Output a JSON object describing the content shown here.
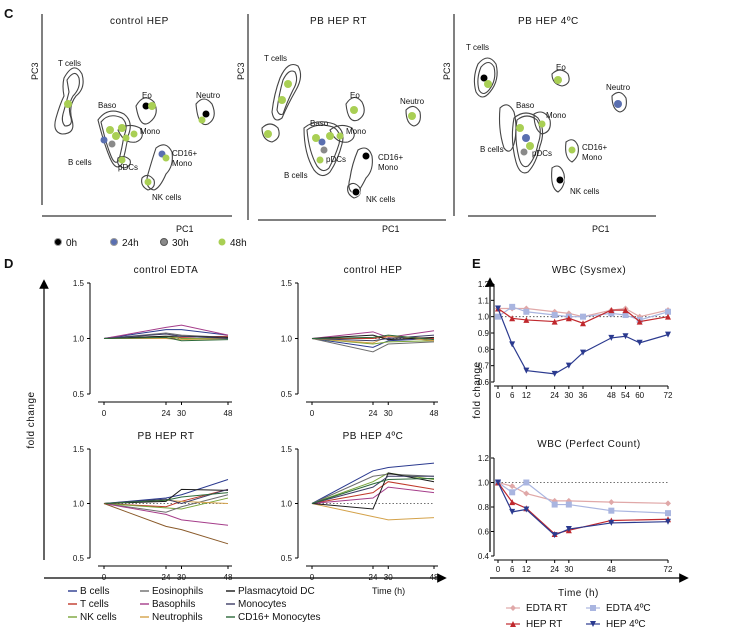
{
  "panels": {
    "c": "C",
    "d": "D",
    "e": "E"
  },
  "pca": {
    "titles": [
      "control  HEP",
      "PB  HEP  RT",
      "PB  HEP  4ºC"
    ],
    "xlabel": "PC1",
    "ylabel": "PC3",
    "clusters": [
      "T cells",
      "Baso",
      "B cells",
      "pDCs",
      "Eo",
      "Mono",
      "Neutro",
      "CD16+",
      "Mono",
      "NK cells"
    ],
    "time_legend": [
      "0h",
      "24h",
      "30h",
      "48h"
    ],
    "colors": {
      "h0": "#000000",
      "h24": "#5a6fb0",
      "h30": "#8a8a8a",
      "h48": "#a9cf54",
      "cluster": "#555555"
    }
  },
  "chart_data": [
    {
      "type": "line",
      "title": "control EDTA",
      "x": [
        0,
        24,
        30,
        48
      ],
      "ylim": [
        0.5,
        1.5
      ],
      "yticks": [
        0.5,
        1.0,
        1.5
      ],
      "series": [
        {
          "name": "B cells",
          "color": "#2b3a8f",
          "values": [
            1.0,
            1.08,
            1.08,
            1.03
          ]
        },
        {
          "name": "T cells",
          "color": "#c0392b",
          "values": [
            1.0,
            1.0,
            1.01,
            1.02
          ]
        },
        {
          "name": "NK cells",
          "color": "#7aa63a",
          "values": [
            1.0,
            1.02,
            1.0,
            1.0
          ]
        },
        {
          "name": "Eosinophils",
          "color": "#6d6d6d",
          "values": [
            1.0,
            1.05,
            1.03,
            1.01
          ]
        },
        {
          "name": "Basophils",
          "color": "#a53d8a",
          "values": [
            1.0,
            1.1,
            1.12,
            1.03
          ]
        },
        {
          "name": "Neutrophils",
          "color": "#d4a24a",
          "values": [
            1.0,
            1.0,
            0.99,
            1.0
          ]
        },
        {
          "name": "Plasmacytoid DC",
          "color": "#1a1a1a",
          "values": [
            1.0,
            1.02,
            1.02,
            1.01
          ]
        },
        {
          "name": "Monocytes",
          "color": "#3d3d66",
          "values": [
            1.0,
            1.04,
            1.02,
            1.0
          ]
        },
        {
          "name": "CD16+ Monocytes",
          "color": "#2e6a3a",
          "values": [
            1.0,
            1.01,
            0.98,
            0.99
          ]
        }
      ]
    },
    {
      "type": "line",
      "title": "control  HEP",
      "x": [
        0,
        24,
        30,
        48
      ],
      "ylim": [
        0.5,
        1.5
      ],
      "yticks": [
        0.5,
        1.0,
        1.5
      ],
      "series": [
        {
          "name": "B cells",
          "color": "#2b3a8f",
          "values": [
            1.0,
            0.92,
            0.98,
            1.0
          ]
        },
        {
          "name": "T cells",
          "color": "#c0392b",
          "values": [
            1.0,
            1.0,
            1.02,
            1.0
          ]
        },
        {
          "name": "NK cells",
          "color": "#7aa63a",
          "values": [
            1.0,
            0.95,
            0.97,
            0.98
          ]
        },
        {
          "name": "Eosinophils",
          "color": "#6d6d6d",
          "values": [
            1.0,
            0.88,
            0.95,
            0.97
          ]
        },
        {
          "name": "Basophils",
          "color": "#a53d8a",
          "values": [
            1.0,
            1.06,
            1.01,
            1.07
          ]
        },
        {
          "name": "Neutrophils",
          "color": "#d4a24a",
          "values": [
            1.0,
            0.96,
            1.02,
            0.98
          ]
        },
        {
          "name": "Plasmacytoid DC",
          "color": "#1a1a1a",
          "values": [
            1.0,
            1.03,
            0.99,
            1.01
          ]
        },
        {
          "name": "Monocytes",
          "color": "#3d3d66",
          "values": [
            1.0,
            0.98,
            1.0,
            1.03
          ]
        },
        {
          "name": "CD16+ Monocytes",
          "color": "#2e6a3a",
          "values": [
            1.0,
            1.01,
            1.03,
            0.99
          ]
        }
      ]
    },
    {
      "type": "line",
      "title": "PB  HEP  RT",
      "x": [
        0,
        24,
        30,
        48
      ],
      "ylim": [
        0.5,
        1.5
      ],
      "yticks": [
        0.5,
        1.0,
        1.5
      ],
      "series": [
        {
          "name": "B cells",
          "color": "#2b3a8f",
          "values": [
            1.0,
            1.05,
            1.08,
            1.22
          ]
        },
        {
          "name": "T cells",
          "color": "#c0392b",
          "values": [
            1.0,
            0.97,
            1.02,
            1.13
          ]
        },
        {
          "name": "NK cells",
          "color": "#7aa63a",
          "values": [
            1.0,
            0.96,
            0.95,
            1.05
          ]
        },
        {
          "name": "Eosinophils",
          "color": "#6d6d6d",
          "values": [
            1.0,
            0.92,
            0.97,
            1.08
          ]
        },
        {
          "name": "Basophils",
          "color": "#a53d8a",
          "values": [
            1.0,
            0.9,
            0.85,
            0.8
          ]
        },
        {
          "name": "Neutrophils",
          "color": "#d4a24a",
          "values": [
            1.0,
            1.03,
            1.02,
            1.0
          ]
        },
        {
          "name": "Plasmacytoid DC",
          "color": "#1a1a1a",
          "values": [
            1.0,
            1.02,
            1.13,
            1.12
          ]
        },
        {
          "name": "Monocytes",
          "color": "#3d3d66",
          "values": [
            1.0,
            1.04,
            1.0,
            1.13
          ]
        },
        {
          "name": "CD16+ Monocytes",
          "color": "#2e6a3a",
          "values": [
            1.0,
            1.03,
            1.06,
            1.1
          ]
        },
        {
          "name": "",
          "color": "#8a5a2a",
          "values": [
            1.0,
            0.79,
            0.76,
            0.63
          ]
        }
      ]
    },
    {
      "type": "line",
      "title": "PB  HEP  4ºC",
      "x": [
        0,
        24,
        30,
        48
      ],
      "ylim": [
        0.5,
        1.5
      ],
      "yticks": [
        0.5,
        1.0,
        1.5
      ],
      "series": [
        {
          "name": "B cells",
          "color": "#2b3a8f",
          "values": [
            1.0,
            1.3,
            1.33,
            1.37
          ]
        },
        {
          "name": "T cells",
          "color": "#c0392b",
          "values": [
            1.0,
            1.1,
            1.2,
            1.13
          ]
        },
        {
          "name": "NK cells",
          "color": "#7aa63a",
          "values": [
            1.0,
            1.2,
            1.28,
            1.22
          ]
        },
        {
          "name": "Eosinophils",
          "color": "#6d6d6d",
          "values": [
            1.0,
            1.25,
            1.27,
            1.25
          ]
        },
        {
          "name": "Basophils",
          "color": "#a53d8a",
          "values": [
            1.0,
            1.05,
            1.15,
            1.1
          ]
        },
        {
          "name": "Neutrophils",
          "color": "#d4a24a",
          "values": [
            1.0,
            0.88,
            0.85,
            0.87
          ]
        },
        {
          "name": "Plasmacytoid DC",
          "color": "#1a1a1a",
          "values": [
            1.0,
            0.95,
            1.28,
            1.2
          ]
        },
        {
          "name": "Monocytes",
          "color": "#3d3d66",
          "values": [
            1.0,
            1.15,
            1.25,
            1.25
          ]
        },
        {
          "name": "CD16+ Monocytes",
          "color": "#2e6a3a",
          "values": [
            1.0,
            1.18,
            1.22,
            1.23
          ]
        }
      ]
    },
    {
      "type": "line",
      "title": "WBC  (Sysmex)",
      "x": [
        0,
        6,
        12,
        24,
        30,
        36,
        48,
        54,
        60,
        72
      ],
      "ylim": [
        0.6,
        1.2
      ],
      "yticks": [
        0.6,
        0.7,
        0.8,
        0.9,
        1.0,
        1.1,
        1.2
      ],
      "reference": 1.0,
      "series": [
        {
          "name": "EDTA RT",
          "color": "#e0a8a8",
          "marker": "diamond",
          "values": [
            1.05,
            1.05,
            1.05,
            1.03,
            1.02,
            1.0,
            1.04,
            1.05,
            1.0,
            1.04
          ]
        },
        {
          "name": "EDTA 4ºC",
          "color": "#a9b5e0",
          "marker": "square",
          "values": [
            1.0,
            1.06,
            1.03,
            1.01,
            1.0,
            1.0,
            1.02,
            1.01,
            0.98,
            1.03
          ]
        },
        {
          "name": "HEP RT",
          "color": "#c0282d",
          "marker": "triangle",
          "values": [
            1.05,
            0.99,
            0.98,
            0.97,
            0.99,
            0.96,
            1.04,
            1.04,
            0.97,
            1.0
          ]
        },
        {
          "name": "HEP 4ºC",
          "color": "#2b3a8f",
          "marker": "triangle-down",
          "values": [
            1.05,
            0.83,
            0.67,
            0.65,
            0.7,
            0.78,
            0.87,
            0.88,
            0.84,
            0.89
          ]
        }
      ]
    },
    {
      "type": "line",
      "title": "WBC  (Perfect Count)",
      "x": [
        0,
        6,
        12,
        24,
        30,
        48,
        72
      ],
      "ylim": [
        0.4,
        1.2
      ],
      "yticks": [
        0.4,
        0.6,
        0.8,
        1.0,
        1.2
      ],
      "reference": 1.0,
      "series": [
        {
          "name": "EDTA RT",
          "color": "#e0a8a8",
          "marker": "diamond",
          "values": [
            1.0,
            0.97,
            0.91,
            0.85,
            0.85,
            0.84,
            0.83
          ]
        },
        {
          "name": "EDTA 4ºC",
          "color": "#a9b5e0",
          "marker": "square",
          "values": [
            1.0,
            0.92,
            1.0,
            0.82,
            0.82,
            0.77,
            0.75
          ]
        },
        {
          "name": "HEP RT",
          "color": "#c0282d",
          "marker": "triangle",
          "values": [
            1.0,
            0.84,
            0.79,
            0.58,
            0.61,
            0.69,
            0.7
          ]
        },
        {
          "name": "HEP 4ºC",
          "color": "#2b3a8f",
          "marker": "triangle-down",
          "values": [
            1.0,
            0.76,
            0.78,
            0.57,
            0.62,
            0.67,
            0.68
          ]
        }
      ]
    }
  ],
  "d_axes": {
    "ylabel": "fold change",
    "xlabel": "Time (h)"
  },
  "e_axes": {
    "ylabel": "fold change",
    "xlabel": "Time (h)"
  },
  "d_legend": [
    "B cells",
    "Eosinophils",
    "Plasmacytoid DC",
    "T cells",
    "Basophils",
    "Monocytes",
    "NK cells",
    "Neutrophils",
    "CD16+ Monocytes"
  ],
  "e_legend": [
    "EDTA RT",
    "EDTA 4ºC",
    "HEP RT",
    "HEP 4ºC"
  ]
}
